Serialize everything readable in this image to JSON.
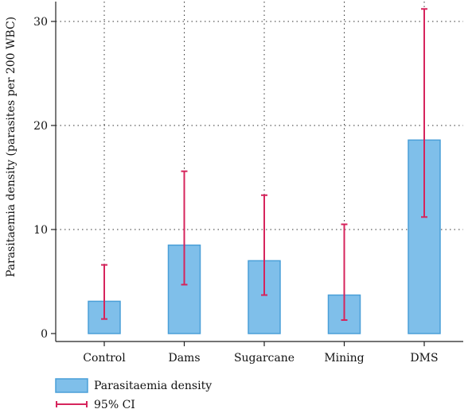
{
  "chart_data": {
    "type": "bar",
    "categories": [
      "Control",
      "Dams",
      "Sugarcane",
      "Mining",
      "DMS"
    ],
    "series": [
      {
        "name": "Parasitaemia density",
        "values": [
          3.1,
          8.5,
          7.0,
          3.7,
          18.6
        ],
        "ci_lower": [
          1.4,
          4.7,
          3.7,
          1.3,
          11.2
        ],
        "ci_upper": [
          6.6,
          15.6,
          13.3,
          10.5,
          31.2
        ]
      }
    ],
    "ci_label": "95% CI",
    "xlabel": "",
    "ylabel": "Parasitaemia density (parasites per 200 WBC)",
    "ylim": [
      0,
      32
    ],
    "yticks": [
      0,
      10,
      20,
      30
    ],
    "grid": true,
    "legend_position": "bottom-left",
    "colors": {
      "bar_fill": "#7fbfea",
      "bar_stroke": "#4a9fd8",
      "ci": "#d6245c",
      "grid": "#333333",
      "axis": "#222222"
    }
  }
}
